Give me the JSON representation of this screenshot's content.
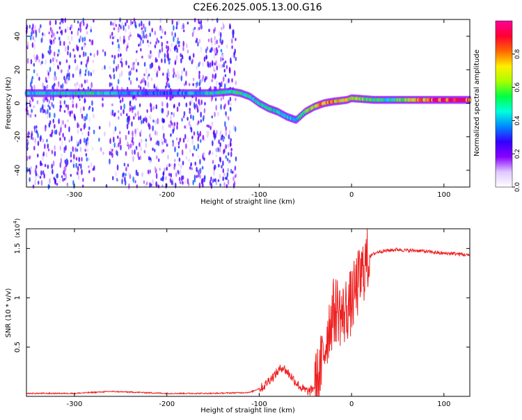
{
  "title": "C2E6.2025.005.13.00.G16",
  "chart_data": [
    {
      "type": "heatmap",
      "xlabel": "Height of straight line (km)",
      "ylabel": "Frequency (Hz)",
      "xlim": [
        -352,
        128
      ],
      "ylim": [
        -50,
        50
      ],
      "xticks": [
        -300,
        -200,
        -100,
        0,
        100
      ],
      "yticks": [
        -40,
        -20,
        0,
        20,
        40
      ],
      "colorbar": {
        "label": "Normalized spectral amplitude",
        "range": [
          0,
          1
        ],
        "ticks": [
          0.0,
          0.2,
          0.4,
          0.6,
          0.8
        ],
        "colors": [
          "#ffffff",
          "#e0c8ff",
          "#8800ff",
          "#3300ff",
          "#0088ff",
          "#00ffdd",
          "#00ff44",
          "#aaff00",
          "#ffee00",
          "#ff6600",
          "#ff0033",
          "#ff0099"
        ]
      },
      "ridge": [
        {
          "x": -352,
          "y": 6
        },
        {
          "x": -300,
          "y": 6
        },
        {
          "x": -250,
          "y": 6
        },
        {
          "x": -200,
          "y": 6
        },
        {
          "x": -150,
          "y": 6
        },
        {
          "x": -130,
          "y": 7
        },
        {
          "x": -120,
          "y": 6
        },
        {
          "x": -110,
          "y": 4
        },
        {
          "x": -100,
          "y": 0
        },
        {
          "x": -90,
          "y": -3
        },
        {
          "x": -80,
          "y": -5
        },
        {
          "x": -70,
          "y": -8
        },
        {
          "x": -60,
          "y": -10
        },
        {
          "x": -50,
          "y": -5
        },
        {
          "x": -40,
          "y": -2
        },
        {
          "x": -30,
          "y": 0
        },
        {
          "x": -20,
          "y": 1
        },
        {
          "x": -5,
          "y": 2
        },
        {
          "x": 0,
          "y": 3
        },
        {
          "x": 25,
          "y": 2
        },
        {
          "x": 50,
          "y": 2
        },
        {
          "x": 75,
          "y": 2
        },
        {
          "x": 100,
          "y": 2
        },
        {
          "x": 128,
          "y": 2
        }
      ],
      "ridge_amplitude": [
        {
          "x": -352,
          "a": 0.45
        },
        {
          "x": -280,
          "a": 0.5
        },
        {
          "x": -200,
          "a": 0.35
        },
        {
          "x": -130,
          "a": 0.55
        },
        {
          "x": -100,
          "a": 0.5
        },
        {
          "x": -60,
          "a": 0.45
        },
        {
          "x": -30,
          "a": 0.85
        },
        {
          "x": 0,
          "a": 0.7
        },
        {
          "x": 40,
          "a": 0.5
        },
        {
          "x": 90,
          "a": 0.9
        },
        {
          "x": 128,
          "a": 0.9
        }
      ],
      "noise_region": {
        "x_from": -352,
        "x_to": -125,
        "y_from": -50,
        "y_to": 50,
        "max_amplitude": 0.3
      }
    },
    {
      "type": "line",
      "xlabel": "Height of straight line (km)",
      "ylabel": "SNR (10 * v/v)",
      "y_multiplier": "(x10^4)",
      "xlim": [
        -352,
        128
      ],
      "ylim": [
        0,
        1.7
      ],
      "xticks": [
        -300,
        -200,
        -100,
        0,
        100
      ],
      "yticks": [
        0.5,
        1.0,
        1.5
      ],
      "color": "#ee2222",
      "series": [
        {
          "x": [
            -352,
            -300,
            -260,
            -200,
            -150,
            -110,
            -100,
            -95,
            -90,
            -85,
            -80,
            -75,
            -70,
            -65,
            -60,
            -55,
            -50,
            -45,
            -40,
            -35,
            -30,
            -25,
            -20,
            -15,
            -10,
            -5,
            0,
            5,
            10,
            15,
            20,
            25,
            30,
            40,
            50,
            60,
            70,
            80,
            90,
            100,
            110,
            120,
            128
          ],
          "y": [
            0.03,
            0.03,
            0.05,
            0.03,
            0.03,
            0.04,
            0.08,
            0.1,
            0.16,
            0.2,
            0.25,
            0.3,
            0.25,
            0.2,
            0.14,
            0.09,
            0.06,
            0.05,
            0.1,
            0.2,
            0.45,
            0.7,
            0.85,
            0.9,
            0.8,
            0.9,
            0.95,
            1.1,
            1.2,
            1.35,
            1.42,
            1.45,
            1.47,
            1.48,
            1.49,
            1.48,
            1.48,
            1.47,
            1.46,
            1.45,
            1.45,
            1.44,
            1.43
          ]
        }
      ]
    }
  ]
}
